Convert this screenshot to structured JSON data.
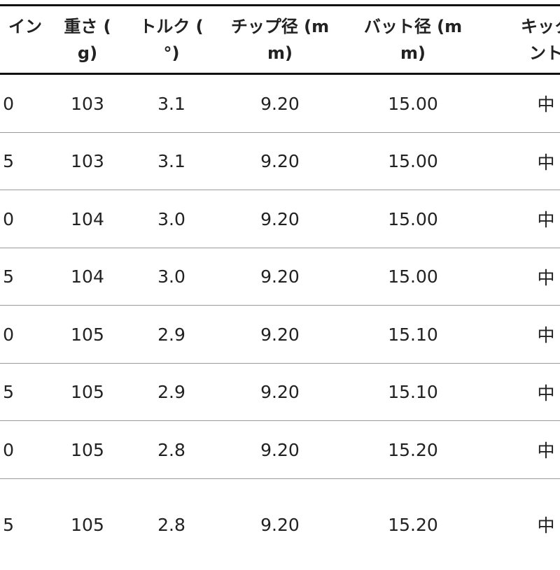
{
  "headers": [
    {
      "lines": [
        "イン",
        ""
      ]
    },
    {
      "lines": [
        "重さ (",
        "g)"
      ]
    },
    {
      "lines": [
        "トルク (",
        "°)"
      ]
    },
    {
      "lines": [
        "チップ径 (m",
        "m)"
      ]
    },
    {
      "lines": [
        "バット径 (m",
        "m)"
      ]
    },
    {
      "lines": [
        "キック",
        "ント"
      ]
    }
  ],
  "rows": [
    [
      "0",
      "103",
      "3.1",
      "9.20",
      "15.00",
      "中"
    ],
    [
      "5",
      "103",
      "3.1",
      "9.20",
      "15.00",
      "中"
    ],
    [
      "0",
      "104",
      "3.0",
      "9.20",
      "15.00",
      "中"
    ],
    [
      "5",
      "104",
      "3.0",
      "9.20",
      "15.00",
      "中"
    ],
    [
      "0",
      "105",
      "2.9",
      "9.20",
      "15.10",
      "中"
    ],
    [
      "5",
      "105",
      "2.9",
      "9.20",
      "15.10",
      "中"
    ],
    [
      "0",
      "105",
      "2.8",
      "9.20",
      "15.20",
      "中"
    ],
    [
      "5",
      "105",
      "2.8",
      "9.20",
      "15.20",
      "中"
    ]
  ]
}
